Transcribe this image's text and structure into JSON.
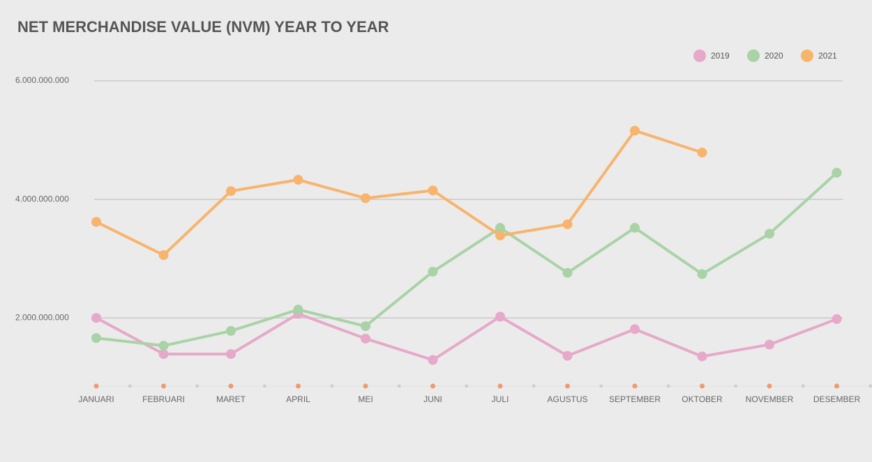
{
  "chart_data": {
    "type": "line",
    "title": "NET MERCHANDISE VALUE (NVM) YEAR TO YEAR",
    "categories": [
      "JANUARI",
      "FEBRUARI",
      "MARET",
      "APRIL",
      "MEI",
      "JUNI",
      "JULI",
      "AGUSTUS",
      "SEPTEMBER",
      "OKTOBER",
      "NOVEMBER",
      "DESEMBER"
    ],
    "series": [
      {
        "name": "2019",
        "color": "#e6a9c9",
        "values": [
          2000000000,
          1390000000,
          1390000000,
          2070000000,
          1650000000,
          1290000000,
          2020000000,
          1360000000,
          1810000000,
          1350000000,
          1550000000,
          1980000000
        ]
      },
      {
        "name": "2020",
        "color": "#a9d3a6",
        "values": [
          1660000000,
          1530000000,
          1780000000,
          2140000000,
          1860000000,
          2780000000,
          3520000000,
          2760000000,
          3520000000,
          2740000000,
          3420000000,
          4450000000
        ]
      },
      {
        "name": "2021",
        "color": "#f8b46c",
        "values": [
          3620000000,
          3060000000,
          4140000000,
          4330000000,
          4020000000,
          4150000000,
          3390000000,
          3580000000,
          5160000000,
          4790000000,
          null,
          null
        ]
      }
    ],
    "ylim": [
      850000000,
      6000000000
    ],
    "yticks": [
      {
        "value": 2000000000,
        "label": "2.000.000.000"
      },
      {
        "value": 4000000000,
        "label": "4.000.000.000"
      },
      {
        "value": 6000000000,
        "label": "6.000.000.000"
      }
    ],
    "grid": true,
    "legend": "top-right"
  }
}
